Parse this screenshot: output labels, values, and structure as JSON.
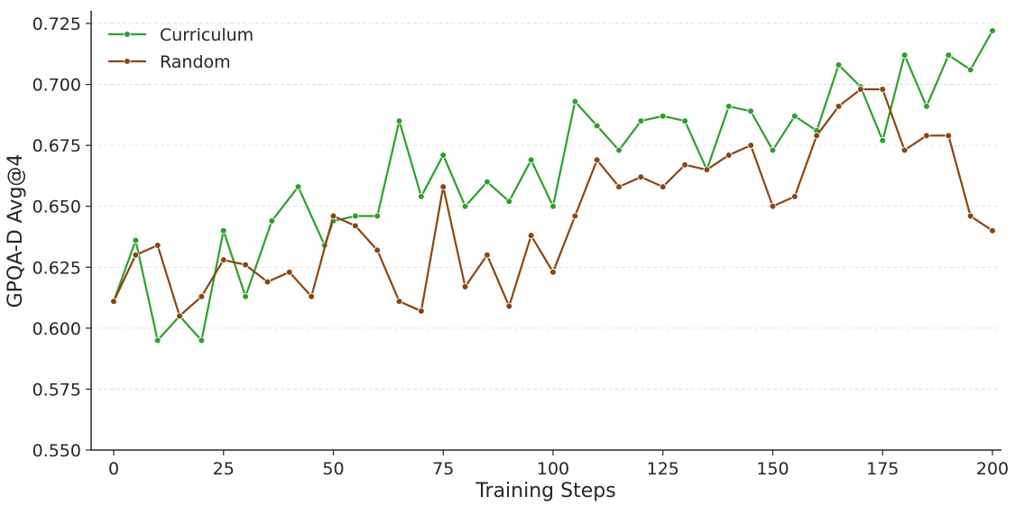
{
  "chart_data": {
    "type": "line",
    "title": "",
    "xlabel": "Training Steps",
    "ylabel": "GPQA-D Avg@4",
    "xlim": [
      -5,
      205
    ],
    "ylim": [
      0.55,
      0.731
    ],
    "xticks": [
      0,
      25,
      50,
      75,
      100,
      125,
      150,
      175,
      200
    ],
    "xtick_labels": [
      "0",
      "25",
      "50",
      "75",
      "100",
      "125",
      "150",
      "175",
      "200"
    ],
    "yticks": [
      0.55,
      0.575,
      0.6,
      0.625,
      0.65,
      0.675,
      0.7,
      0.725
    ],
    "ytick_labels": [
      "0.550",
      "0.575",
      "0.600",
      "0.625",
      "0.650",
      "0.675",
      "0.700",
      "0.725"
    ],
    "grid": "horizontal-dashed",
    "legend": "top-left",
    "x": [
      0,
      5,
      10,
      15,
      20,
      25,
      30,
      35,
      40,
      45,
      50,
      55,
      60,
      65,
      70,
      75,
      80,
      85,
      90,
      95,
      100,
      105,
      110,
      115,
      120,
      125,
      130,
      135,
      140,
      145,
      150,
      155,
      160,
      165,
      170,
      175,
      180,
      185,
      190,
      195,
      200
    ],
    "series": [
      {
        "name": "Curriculum",
        "color": "#2ca02c",
        "x": [
          0,
          5,
          10,
          15,
          20,
          25,
          30,
          36,
          42,
          48,
          50,
          55,
          60,
          65,
          70,
          75,
          80,
          85,
          90,
          95,
          100,
          105,
          110,
          115,
          120,
          125,
          130,
          135,
          140,
          145,
          150,
          155,
          160,
          165,
          170,
          175,
          180,
          185,
          190,
          195,
          200
        ],
        "values": [
          0.611,
          0.636,
          0.595,
          0.605,
          0.595,
          0.64,
          0.613,
          0.644,
          0.658,
          0.634,
          0.644,
          0.646,
          0.646,
          0.685,
          0.654,
          0.671,
          0.65,
          0.66,
          0.652,
          0.669,
          0.65,
          0.693,
          0.683,
          0.673,
          0.685,
          0.687,
          0.685,
          0.665,
          0.691,
          0.689,
          0.673,
          0.687,
          0.681,
          0.708,
          0.699,
          0.677,
          0.712,
          0.691,
          0.712,
          0.706,
          0.722
        ]
      },
      {
        "name": "Random",
        "color": "#8b4513",
        "x": [
          0,
          5,
          10,
          15,
          20,
          25,
          30,
          35,
          40,
          45,
          50,
          55,
          60,
          65,
          70,
          75,
          80,
          85,
          90,
          95,
          100,
          105,
          110,
          115,
          120,
          125,
          130,
          135,
          140,
          145,
          150,
          155,
          160,
          165,
          170,
          175,
          180,
          185,
          190,
          195,
          200
        ],
        "values": [
          0.611,
          0.63,
          0.634,
          0.605,
          0.613,
          0.628,
          0.626,
          0.619,
          0.623,
          0.613,
          0.646,
          0.642,
          0.632,
          0.611,
          0.607,
          0.658,
          0.617,
          0.63,
          0.609,
          0.638,
          0.623,
          0.646,
          0.669,
          0.658,
          0.662,
          0.658,
          0.667,
          0.665,
          0.671,
          0.675,
          0.65,
          0.654,
          0.679,
          0.691,
          0.698,
          0.698,
          0.673,
          0.679,
          0.679,
          0.646,
          0.64
        ]
      }
    ]
  }
}
